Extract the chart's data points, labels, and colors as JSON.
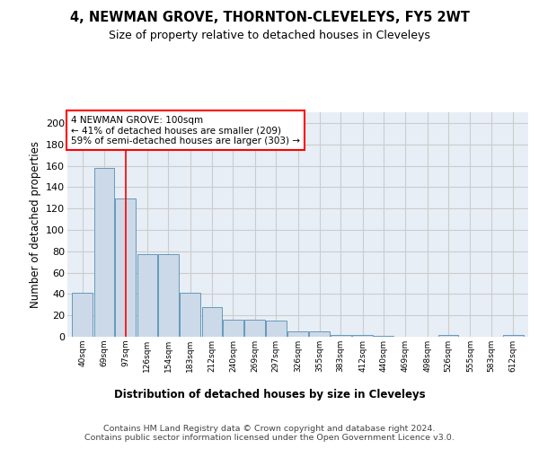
{
  "title": "4, NEWMAN GROVE, THORNTON-CLEVELEYS, FY5 2WT",
  "subtitle": "Size of property relative to detached houses in Cleveleys",
  "xlabel": "Distribution of detached houses by size in Cleveleys",
  "ylabel": "Number of detached properties",
  "bar_color": "#ccd9e8",
  "bar_edge_color": "#6699bb",
  "grid_color": "#cccccc",
  "bg_color": "#e8eef5",
  "annotation_line1": "4 NEWMAN GROVE: 100sqm",
  "annotation_line2": "← 41% of detached houses are smaller (209)",
  "annotation_line3": "59% of semi-detached houses are larger (303) →",
  "annotation_box_color": "white",
  "annotation_box_edge": "red",
  "vline_x": 97,
  "vline_color": "red",
  "bins": [
    40,
    69,
    97,
    126,
    154,
    183,
    212,
    240,
    269,
    297,
    326,
    355,
    383,
    412,
    440,
    469,
    498,
    526,
    555,
    583,
    612
  ],
  "counts": [
    41,
    158,
    129,
    77,
    77,
    41,
    28,
    16,
    16,
    15,
    5,
    5,
    2,
    2,
    1,
    0,
    0,
    2,
    0,
    0,
    2
  ],
  "tick_labels": [
    "40sqm",
    "69sqm",
    "97sqm",
    "126sqm",
    "154sqm",
    "183sqm",
    "212sqm",
    "240sqm",
    "269sqm",
    "297sqm",
    "326sqm",
    "355sqm",
    "383sqm",
    "412sqm",
    "440sqm",
    "469sqm",
    "498sqm",
    "526sqm",
    "555sqm",
    "583sqm",
    "612sqm"
  ],
  "footer": "Contains HM Land Registry data © Crown copyright and database right 2024.\nContains public sector information licensed under the Open Government Licence v3.0.",
  "ylim": [
    0,
    210
  ],
  "yticks": [
    0,
    20,
    40,
    60,
    80,
    100,
    120,
    140,
    160,
    180,
    200
  ]
}
